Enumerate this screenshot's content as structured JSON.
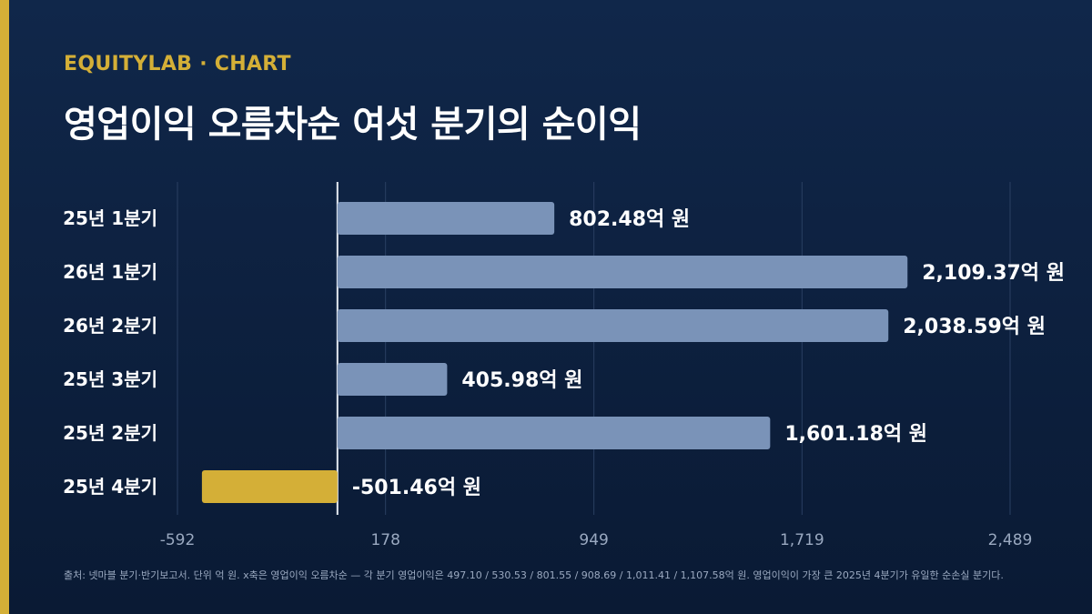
{
  "brand": "EQUITYLAB · CHART",
  "title": "영업이익 오름차순 여섯 분기의 순이익",
  "footnote": "출처: 넷마블 분기·반기보고서. 단위 억 원. x축은 영업이익 오름차순 — 각 분기 영업이익은 497.10 / 530.53 / 801.55 / 908.69 / 1,011.41 / 1,107.58억 원. 영업이익이 가장 큰 2025년 4분기가 유일한 순손실 분기다.",
  "colors": {
    "positive_bar": "#7a93b8",
    "negative_bar": "#d4af37",
    "accent": "#d4af37",
    "grid": "#2a3f62",
    "zero_line": "#e6ebf2"
  },
  "chart_data": {
    "type": "bar",
    "orientation": "horizontal",
    "categories": [
      "25년 1분기",
      "26년 1분기",
      "26년 2분기",
      "25년 3분기",
      "25년 2분기",
      "25년 4분기"
    ],
    "values": [
      802.48,
      2109.37,
      2038.59,
      405.98,
      1601.18,
      -501.46
    ],
    "value_labels": [
      "802.48억 원",
      "2,109.37억 원",
      "2,038.59억 원",
      "405.98억 원",
      "1,601.18억 원",
      "-501.46억 원"
    ],
    "xlim": [
      -592,
      2489
    ],
    "x_ticks": [
      -592,
      178,
      949,
      1719,
      2489
    ],
    "x_tick_labels": [
      "-592",
      "178",
      "949",
      "1,719",
      "2,489"
    ],
    "grid": true
  }
}
